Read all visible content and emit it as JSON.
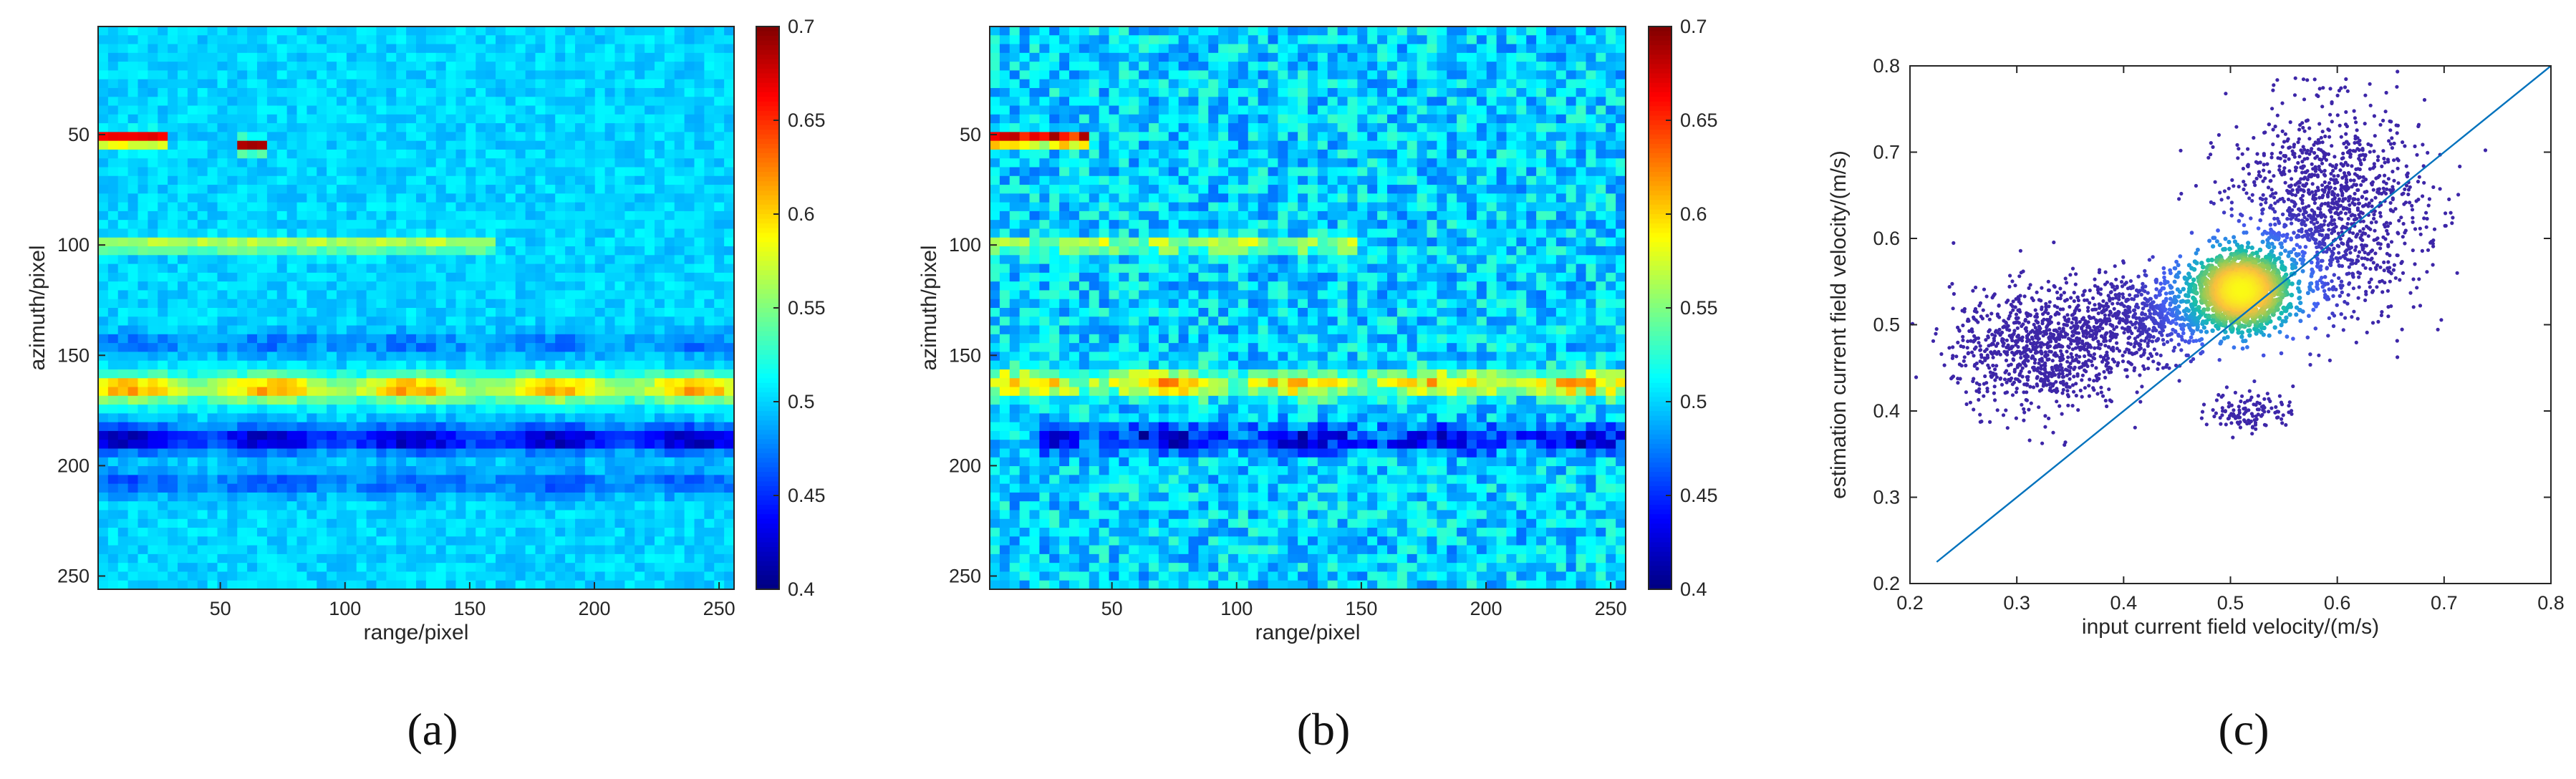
{
  "chart_data": [
    {
      "type": "heatmap",
      "caption": "(a)",
      "xlabel": "range/pixel",
      "ylabel": "azimuth/pixel",
      "xticks": [
        50,
        100,
        150,
        200,
        250
      ],
      "yticks": [
        50,
        100,
        150,
        200,
        250
      ],
      "xlim": [
        1,
        256
      ],
      "ylim": [
        1,
        256
      ],
      "y_direction": "reversed",
      "colormap": "jet",
      "clim": [
        0.4,
        0.7
      ],
      "colorbar_ticks": [
        "0.4",
        "0.45",
        "0.5",
        "0.55",
        "0.6",
        "0.65",
        "0.7"
      ],
      "background_value": 0.5,
      "features": [
        {
          "kind": "band",
          "y": 165,
          "x": [
            1,
            256
          ],
          "value": 0.62
        },
        {
          "kind": "band",
          "y": 188,
          "x": [
            1,
            256
          ],
          "value": 0.41
        },
        {
          "kind": "band",
          "y": 208,
          "x": [
            1,
            256
          ],
          "value": 0.46
        },
        {
          "kind": "band",
          "y": 145,
          "x": [
            1,
            256
          ],
          "value": 0.47
        },
        {
          "kind": "streak",
          "y": 52,
          "x": [
            1,
            30
          ],
          "value": 0.69
        },
        {
          "kind": "streak",
          "y": 55,
          "x": [
            55,
            70
          ],
          "value": 0.68
        },
        {
          "kind": "streak",
          "y": 100,
          "x": [
            1,
            160
          ],
          "value": 0.58
        }
      ]
    },
    {
      "type": "heatmap",
      "caption": "(b)",
      "xlabel": "range/pixel",
      "ylabel": "azimuth/pixel",
      "xticks": [
        50,
        100,
        150,
        200,
        250
      ],
      "yticks": [
        50,
        100,
        150,
        200,
        250
      ],
      "xlim": [
        1,
        256
      ],
      "ylim": [
        1,
        256
      ],
      "y_direction": "reversed",
      "colormap": "jet",
      "clim": [
        0.4,
        0.7
      ],
      "colorbar_ticks": [
        "0.4",
        "0.45",
        "0.5",
        "0.55",
        "0.6",
        "0.65",
        "0.7"
      ],
      "background_value": 0.5,
      "noise": "speckled",
      "features": [
        {
          "kind": "band",
          "y": 163,
          "x": [
            1,
            256
          ],
          "value": 0.61
        },
        {
          "kind": "band",
          "y": 188,
          "x": [
            20,
            256
          ],
          "value": 0.42
        },
        {
          "kind": "streak",
          "y": 52,
          "x": [
            1,
            40
          ],
          "value": 0.69
        },
        {
          "kind": "streak",
          "y": 100,
          "x": [
            1,
            150
          ],
          "value": 0.57
        }
      ]
    },
    {
      "type": "scatter",
      "caption": "(c)",
      "xlabel": "input current field velocity/(m/s)",
      "ylabel": "estimation current field velocity/(m/s)",
      "xlim": [
        0.2,
        0.8
      ],
      "ylim": [
        0.2,
        0.8
      ],
      "xticks": [
        "0.2",
        "0.3",
        "0.4",
        "0.5",
        "0.6",
        "0.7",
        "0.8"
      ],
      "yticks": [
        "0.2",
        "0.3",
        "0.4",
        "0.5",
        "0.6",
        "0.7",
        "0.8"
      ],
      "density_colored": true,
      "density_peak": {
        "x": 0.51,
        "y": 0.54
      },
      "clusters": [
        {
          "cx": 0.32,
          "cy": 0.47,
          "sx": 0.04,
          "sy": 0.035,
          "n": 900
        },
        {
          "cx": 0.42,
          "cy": 0.51,
          "sx": 0.04,
          "sy": 0.025,
          "n": 700
        },
        {
          "cx": 0.51,
          "cy": 0.54,
          "sx": 0.02,
          "sy": 0.02,
          "n": 1300
        },
        {
          "cx": 0.59,
          "cy": 0.63,
          "sx": 0.045,
          "sy": 0.06,
          "n": 1300
        },
        {
          "cx": 0.52,
          "cy": 0.4,
          "sx": 0.02,
          "sy": 0.012,
          "n": 120
        }
      ],
      "reference_line": {
        "x": [
          0.225,
          0.8
        ],
        "y": [
          0.225,
          0.8
        ],
        "color": "#0072BD"
      }
    }
  ]
}
